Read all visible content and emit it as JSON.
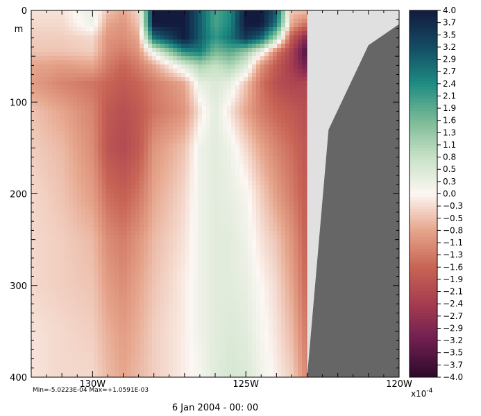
{
  "chart_data": {
    "type": "heatmap",
    "title": "",
    "xlabel": "",
    "ylabel": "m",
    "x_axis": {
      "range": [
        -132,
        -120
      ],
      "ticks": [
        -130,
        -125,
        -120
      ],
      "tick_labels": [
        "130W",
        "125W",
        "120W"
      ],
      "minor_step": 0.5
    },
    "y_axis": {
      "range": [
        0,
        400
      ],
      "inverted": true,
      "ticks": [
        0,
        100,
        200,
        300,
        400
      ],
      "tick_labels": [
        "0",
        "100",
        "200",
        "300",
        "400"
      ],
      "minor_step": 10
    },
    "colorbar": {
      "levels": [
        "4.0",
        "3.7",
        "3.5",
        "3.2",
        "2.9",
        "2.7",
        "2.4",
        "2.1",
        "1.9",
        "1.6",
        "1.3",
        "1.1",
        "0.8",
        "0.5",
        "0.3",
        "0.0",
        "-0.3",
        "-0.5",
        "-0.8",
        "-1.1",
        "-1.3",
        "-1.6",
        "-1.9",
        "-2.1",
        "-2.4",
        "-2.7",
        "-2.9",
        "-3.2",
        "-3.5",
        "-3.7",
        "-4.0"
      ],
      "scale_label": "x10",
      "scale_exponent": "-4",
      "range": [
        -4.0,
        4.0
      ]
    },
    "stats": "Min=-5.0223E-04  Max=+1.0591E-03",
    "date_caption": "6 Jan 2004 - 00: 00",
    "land_color": "#666666",
    "nodata_color": "#e0e0e0",
    "nodata_from_lon": -123,
    "land_boundary": [
      [
        -123,
        400
      ],
      [
        -122.3,
        130
      ],
      [
        -121,
        38
      ],
      [
        -120,
        15
      ]
    ],
    "field": {
      "lons": [
        -132,
        -131,
        -130,
        -129.5,
        -129,
        -128.5,
        -128,
        -127,
        -126.5,
        -126,
        -125.5,
        -125,
        -124.5,
        -124,
        -123.5,
        -123
      ],
      "depths": [
        0,
        15,
        30,
        45,
        60,
        80,
        110,
        150,
        200,
        250,
        300,
        350,
        400
      ],
      "values": [
        [
          -0.2,
          -0.2,
          0.3,
          -0.5,
          -0.8,
          -0.3,
          4.0,
          4.0,
          3.0,
          2.0,
          2.4,
          4.0,
          4.0,
          3.0,
          -0.5,
          -0.5
        ],
        [
          -0.3,
          -0.3,
          0.2,
          -0.8,
          -1.0,
          -0.5,
          4.0,
          4.0,
          3.0,
          2.0,
          2.5,
          4.0,
          4.0,
          2.6,
          -0.8,
          -1.5
        ],
        [
          -0.4,
          -0.4,
          -0.3,
          -1.0,
          -1.1,
          -0.8,
          2.7,
          4.0,
          3.0,
          2.2,
          2.7,
          3.5,
          2.9,
          1.0,
          -1.8,
          -3.0
        ],
        [
          -0.5,
          -0.5,
          -0.4,
          -1.1,
          -1.3,
          -1.0,
          0.3,
          2.4,
          2.6,
          1.6,
          1.9,
          1.3,
          0.3,
          -1.3,
          -2.3,
          -3.7
        ],
        [
          -0.8,
          -0.9,
          -0.8,
          -1.3,
          -1.6,
          -1.3,
          -0.8,
          0.5,
          1.1,
          0.8,
          1.1,
          0.5,
          -1.0,
          -1.8,
          -2.4,
          -3.2
        ],
        [
          -0.9,
          -1.2,
          -1.4,
          -1.6,
          -1.8,
          -1.6,
          -1.3,
          -0.8,
          0.3,
          0.5,
          0.3,
          -0.5,
          -1.4,
          -2.0,
          -2.2,
          -2.2
        ],
        [
          -0.5,
          -0.8,
          -1.2,
          -1.8,
          -2.0,
          -1.8,
          -1.4,
          -1.0,
          -0.2,
          0.4,
          -0.2,
          -0.8,
          -1.3,
          -1.6,
          -1.8,
          -2.0
        ],
        [
          -0.4,
          -0.6,
          -1.1,
          -1.9,
          -2.1,
          -1.8,
          -1.0,
          -0.5,
          0.2,
          0.4,
          0.2,
          -0.3,
          -0.8,
          -1.2,
          -1.5,
          -1.9
        ],
        [
          -0.3,
          -0.5,
          -0.9,
          -1.5,
          -1.7,
          -1.4,
          -0.8,
          -0.3,
          0.2,
          0.4,
          0.3,
          0.1,
          -0.4,
          -0.9,
          -1.3,
          -1.8
        ],
        [
          -0.3,
          -0.4,
          -0.6,
          -1.1,
          -1.3,
          -1.0,
          -0.6,
          -0.2,
          0.2,
          0.4,
          0.4,
          0.2,
          -0.2,
          -0.5,
          -1.0,
          -1.7
        ],
        [
          -0.3,
          -0.4,
          -0.5,
          -0.9,
          -1.1,
          -0.8,
          -0.5,
          -0.1,
          0.2,
          0.4,
          0.4,
          0.3,
          0.0,
          -0.3,
          -0.8,
          -1.6
        ],
        [
          -0.2,
          -0.3,
          -0.4,
          -0.7,
          -0.9,
          -0.7,
          -0.4,
          -0.1,
          0.2,
          0.4,
          0.5,
          0.4,
          0.1,
          -0.2,
          -0.6,
          -1.4
        ],
        [
          -0.2,
          -0.3,
          -0.3,
          -0.6,
          -0.8,
          -0.6,
          -0.4,
          -0.1,
          0.1,
          0.4,
          0.6,
          0.5,
          0.2,
          -0.1,
          -0.4,
          -1.2
        ]
      ]
    }
  }
}
